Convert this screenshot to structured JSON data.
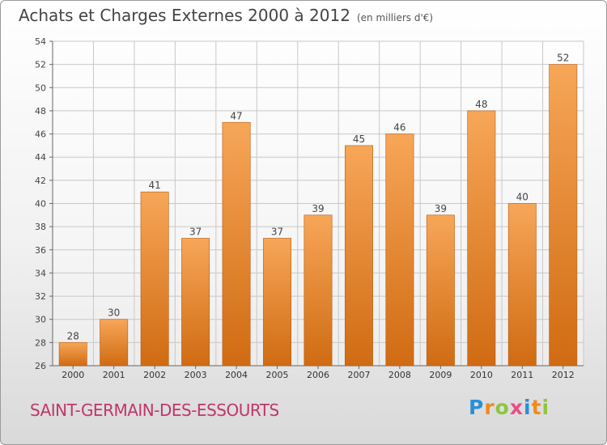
{
  "header": {
    "title": "Achats et Charges Externes 2000 à 2012",
    "unit": "(en milliers d'€)"
  },
  "footer": {
    "commune": "SAINT-GERMAIN-DES-ESSOURTS",
    "brand": "Proxiti"
  },
  "colors": {
    "bar_light": "#f7a658",
    "bar_dark": "#d06b12",
    "commune_text": "#c1356b"
  },
  "chart_data": {
    "type": "bar",
    "title": "Achats et Charges Externes 2000 à 2012",
    "subtitle": "(en milliers d'€)",
    "categories": [
      "2000",
      "2001",
      "2002",
      "2003",
      "2004",
      "2005",
      "2006",
      "2007",
      "2008",
      "2009",
      "2010",
      "2011",
      "2012"
    ],
    "values": [
      28,
      30,
      41,
      37,
      47,
      37,
      39,
      45,
      46,
      39,
      48,
      40,
      52
    ],
    "ylim": [
      26,
      54
    ],
    "yticks": [
      26,
      28,
      30,
      32,
      34,
      36,
      38,
      40,
      42,
      44,
      46,
      48,
      50,
      52,
      54
    ],
    "grid": true,
    "data_labels": true
  }
}
